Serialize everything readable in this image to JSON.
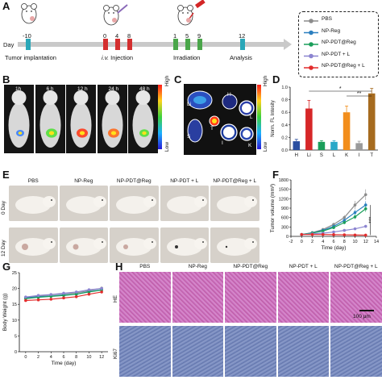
{
  "panels": [
    "A",
    "B",
    "C",
    "D",
    "E",
    "F",
    "G",
    "H"
  ],
  "timeline": {
    "day_label": "Day",
    "days": [
      "-10",
      "0",
      "4",
      "8",
      "1",
      "5",
      "9",
      "12"
    ],
    "tumor_implantation": "Tumor implantation",
    "injection_italic": "i.v.",
    "injection": " Injection",
    "irradiation": "Irradiation",
    "analysis": "Analysis"
  },
  "legend_a": {
    "items": [
      {
        "label": "PBS",
        "color": "#8c8c8c"
      },
      {
        "label": "NP-Reg",
        "color": "#2b7fbf"
      },
      {
        "label": "NP-PDT@Reg",
        "color": "#1a9e5a"
      },
      {
        "label": "NP-PDT + L",
        "color": "#8b84d0"
      },
      {
        "label": "NP-PDT@Reg + L",
        "color": "#e22c2c"
      }
    ]
  },
  "panel_b": {
    "times": [
      "1h",
      "6 h",
      "12 h",
      "24 h",
      "48 h"
    ],
    "scale_high": "High",
    "scale_low": "Low"
  },
  "panel_c": {
    "organ_labels": [
      "Li",
      "H",
      "S",
      "T",
      "I",
      "K",
      "L"
    ],
    "scale_high": "High",
    "scale_low": "Low"
  },
  "panel_d": {
    "chart_data": {
      "type": "bar",
      "categories": [
        "H",
        "Li",
        "S",
        "L",
        "K",
        "I",
        "T"
      ],
      "values": [
        0.14,
        0.66,
        0.13,
        0.13,
        0.6,
        0.11,
        0.9
      ],
      "errors": [
        0.03,
        0.13,
        0.02,
        0.02,
        0.1,
        0.03,
        0.08
      ],
      "colors": [
        "#2b4fa0",
        "#d62728",
        "#1a9e5a",
        "#29a8c8",
        "#f28e1c",
        "#9a9a9a",
        "#a66b1f"
      ],
      "ylabel": "Norm. FL Intesity",
      "ylim": [
        0,
        1.0
      ],
      "yticks": [
        "0.0",
        "0.2",
        "0.4",
        "0.6",
        "0.8",
        "1.0"
      ],
      "significance": [
        "*",
        "**"
      ]
    }
  },
  "panel_e": {
    "groups": [
      "PBS",
      "NP-Reg",
      "NP-PDT@Reg",
      "NP-PDT + L",
      "NP-PDT@Reg + L"
    ],
    "rows": [
      "0 Day",
      "12 Day"
    ]
  },
  "panel_f": {
    "chart_data": {
      "type": "line",
      "x": [
        0,
        2,
        4,
        6,
        8,
        10,
        12
      ],
      "series": [
        {
          "name": "PBS",
          "color": "#8c8c8c",
          "values": [
            60,
            120,
            220,
            380,
            600,
            1000,
            1330
          ],
          "errors": [
            10,
            20,
            30,
            50,
            80,
            130,
            170
          ]
        },
        {
          "name": "NP-Reg",
          "color": "#2b7fbf",
          "values": [
            60,
            110,
            190,
            320,
            510,
            760,
            1000
          ],
          "errors": [
            10,
            15,
            25,
            40,
            60,
            90,
            120
          ]
        },
        {
          "name": "NP-PDT@Reg",
          "color": "#1a9e5a",
          "values": [
            60,
            105,
            170,
            280,
            440,
            620,
            880
          ],
          "errors": [
            10,
            15,
            25,
            35,
            50,
            70,
            100
          ]
        },
        {
          "name": "NP-PDT + L",
          "color": "#8b84d0",
          "values": [
            60,
            80,
            100,
            140,
            190,
            240,
            320
          ],
          "errors": [
            10,
            10,
            15,
            20,
            25,
            35,
            45
          ]
        },
        {
          "name": "NP-PDT@Reg + L",
          "color": "#e22c2c",
          "values": [
            60,
            60,
            60,
            55,
            50,
            45,
            40
          ],
          "errors": [
            8,
            8,
            8,
            8,
            8,
            8,
            8
          ]
        }
      ],
      "xlabel": "Time (day)",
      "ylabel": "Tumor volume (mm³)",
      "xlim": [
        -2,
        14
      ],
      "ylim": [
        0,
        1800
      ],
      "xticks": [
        "-2",
        "0",
        "2",
        "4",
        "6",
        "8",
        "10",
        "12",
        "14"
      ],
      "yticks": [
        "0",
        "300",
        "600",
        "900",
        "1200",
        "1500",
        "1800"
      ],
      "significance": "***"
    }
  },
  "panel_g": {
    "chart_data": {
      "type": "line",
      "x": [
        0,
        2,
        4,
        6,
        8,
        10,
        12
      ],
      "series": [
        {
          "name": "PBS",
          "color": "#8c8c8c",
          "values": [
            17.2,
            17.6,
            18.0,
            18.4,
            18.6,
            19.3,
            20.1
          ]
        },
        {
          "name": "NP-Reg",
          "color": "#2b7fbf",
          "values": [
            17.0,
            17.4,
            17.6,
            18.0,
            18.2,
            19.0,
            19.6
          ]
        },
        {
          "name": "NP-PDT@Reg",
          "color": "#1a9e5a",
          "values": [
            16.8,
            17.2,
            17.5,
            17.8,
            18.2,
            18.9,
            19.5
          ]
        },
        {
          "name": "NP-PDT + L",
          "color": "#8b84d0",
          "values": [
            17.3,
            17.8,
            18.1,
            18.5,
            18.9,
            19.6,
            20.0
          ]
        },
        {
          "name": "NP-PDT@Reg + L",
          "color": "#e22c2c",
          "values": [
            16.2,
            16.4,
            16.6,
            17.0,
            17.4,
            18.2,
            18.9
          ]
        }
      ],
      "xlabel": "Time (day)",
      "ylabel": "Body Weight (g)",
      "xlim": [
        -1,
        13
      ],
      "ylim": [
        0,
        25
      ],
      "xticks": [
        "0",
        "2",
        "4",
        "6",
        "8",
        "10",
        "12"
      ],
      "yticks": [
        "0",
        "5",
        "10",
        "15",
        "20",
        "25"
      ]
    }
  },
  "panel_h": {
    "groups": [
      "PBS",
      "NP-Reg",
      "NP-PDT@Reg",
      "NP-PDT + L",
      "NP-PDT@Reg + L"
    ],
    "rows": [
      "HE",
      "Ki67"
    ],
    "scalebar": "100 μm"
  }
}
